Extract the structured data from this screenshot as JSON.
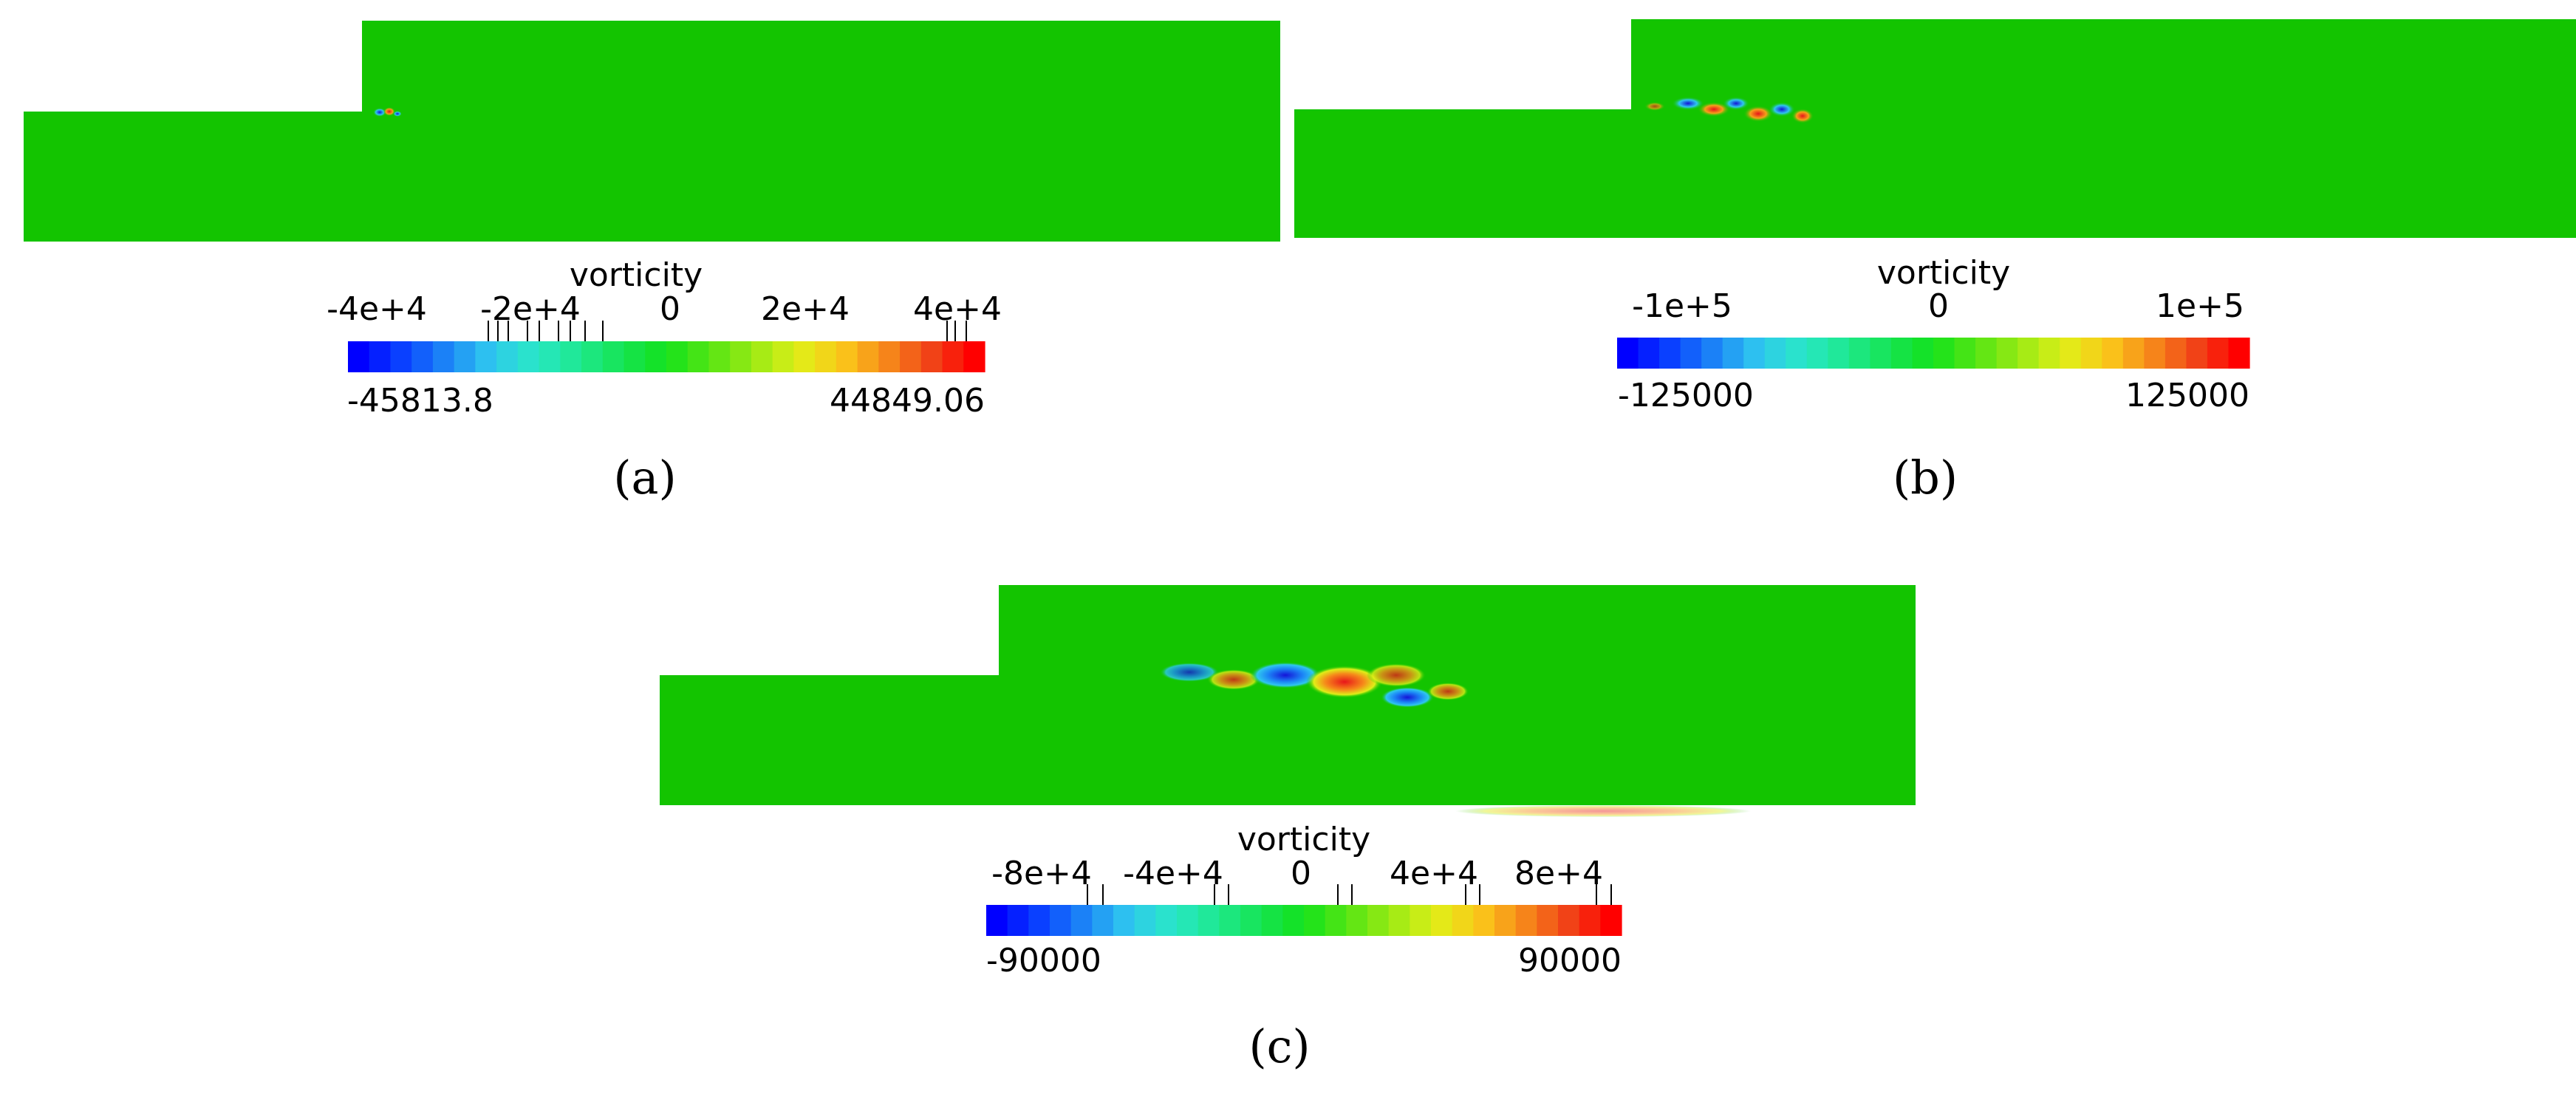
{
  "colors": {
    "domain_fill": "#13c400",
    "red": "#e8151a",
    "blue": "#1414d8",
    "colormap": [
      "#0000ff",
      "#0a42ff",
      "#1c86f6",
      "#2fc7ef",
      "#29e6c8",
      "#1ee890",
      "#16e453",
      "#14e21c",
      "#56e514",
      "#9bea14",
      "#e0ee18",
      "#fbc81a",
      "#f6891a",
      "#f04418",
      "#ff0000"
    ]
  },
  "panels": [
    {
      "id": "a",
      "caption": "(a)",
      "colorbar": {
        "title": "vorticity",
        "range_min_label": "-45813.8",
        "range_max_label": "44849.06",
        "range": [
          -45813.8,
          44849.06
        ],
        "tick_labels": [
          "-4e+4",
          "-2e+4",
          "0",
          "2e+4",
          "4e+4"
        ]
      }
    },
    {
      "id": "b",
      "caption": "(b)",
      "colorbar": {
        "title": "vorticity",
        "range_min_label": "-125000",
        "range_max_label": "125000",
        "range": [
          -125000,
          125000
        ],
        "tick_labels": [
          "-1e+5",
          "0",
          "1e+5"
        ]
      }
    },
    {
      "id": "c",
      "caption": "(c)",
      "colorbar": {
        "title": "vorticity",
        "range_min_label": "-90000",
        "range_max_label": "90000",
        "range": [
          -90000,
          90000
        ],
        "tick_labels": [
          "-8e+4",
          "-4e+4",
          "0",
          "4e+4",
          "8e+4"
        ]
      }
    }
  ]
}
